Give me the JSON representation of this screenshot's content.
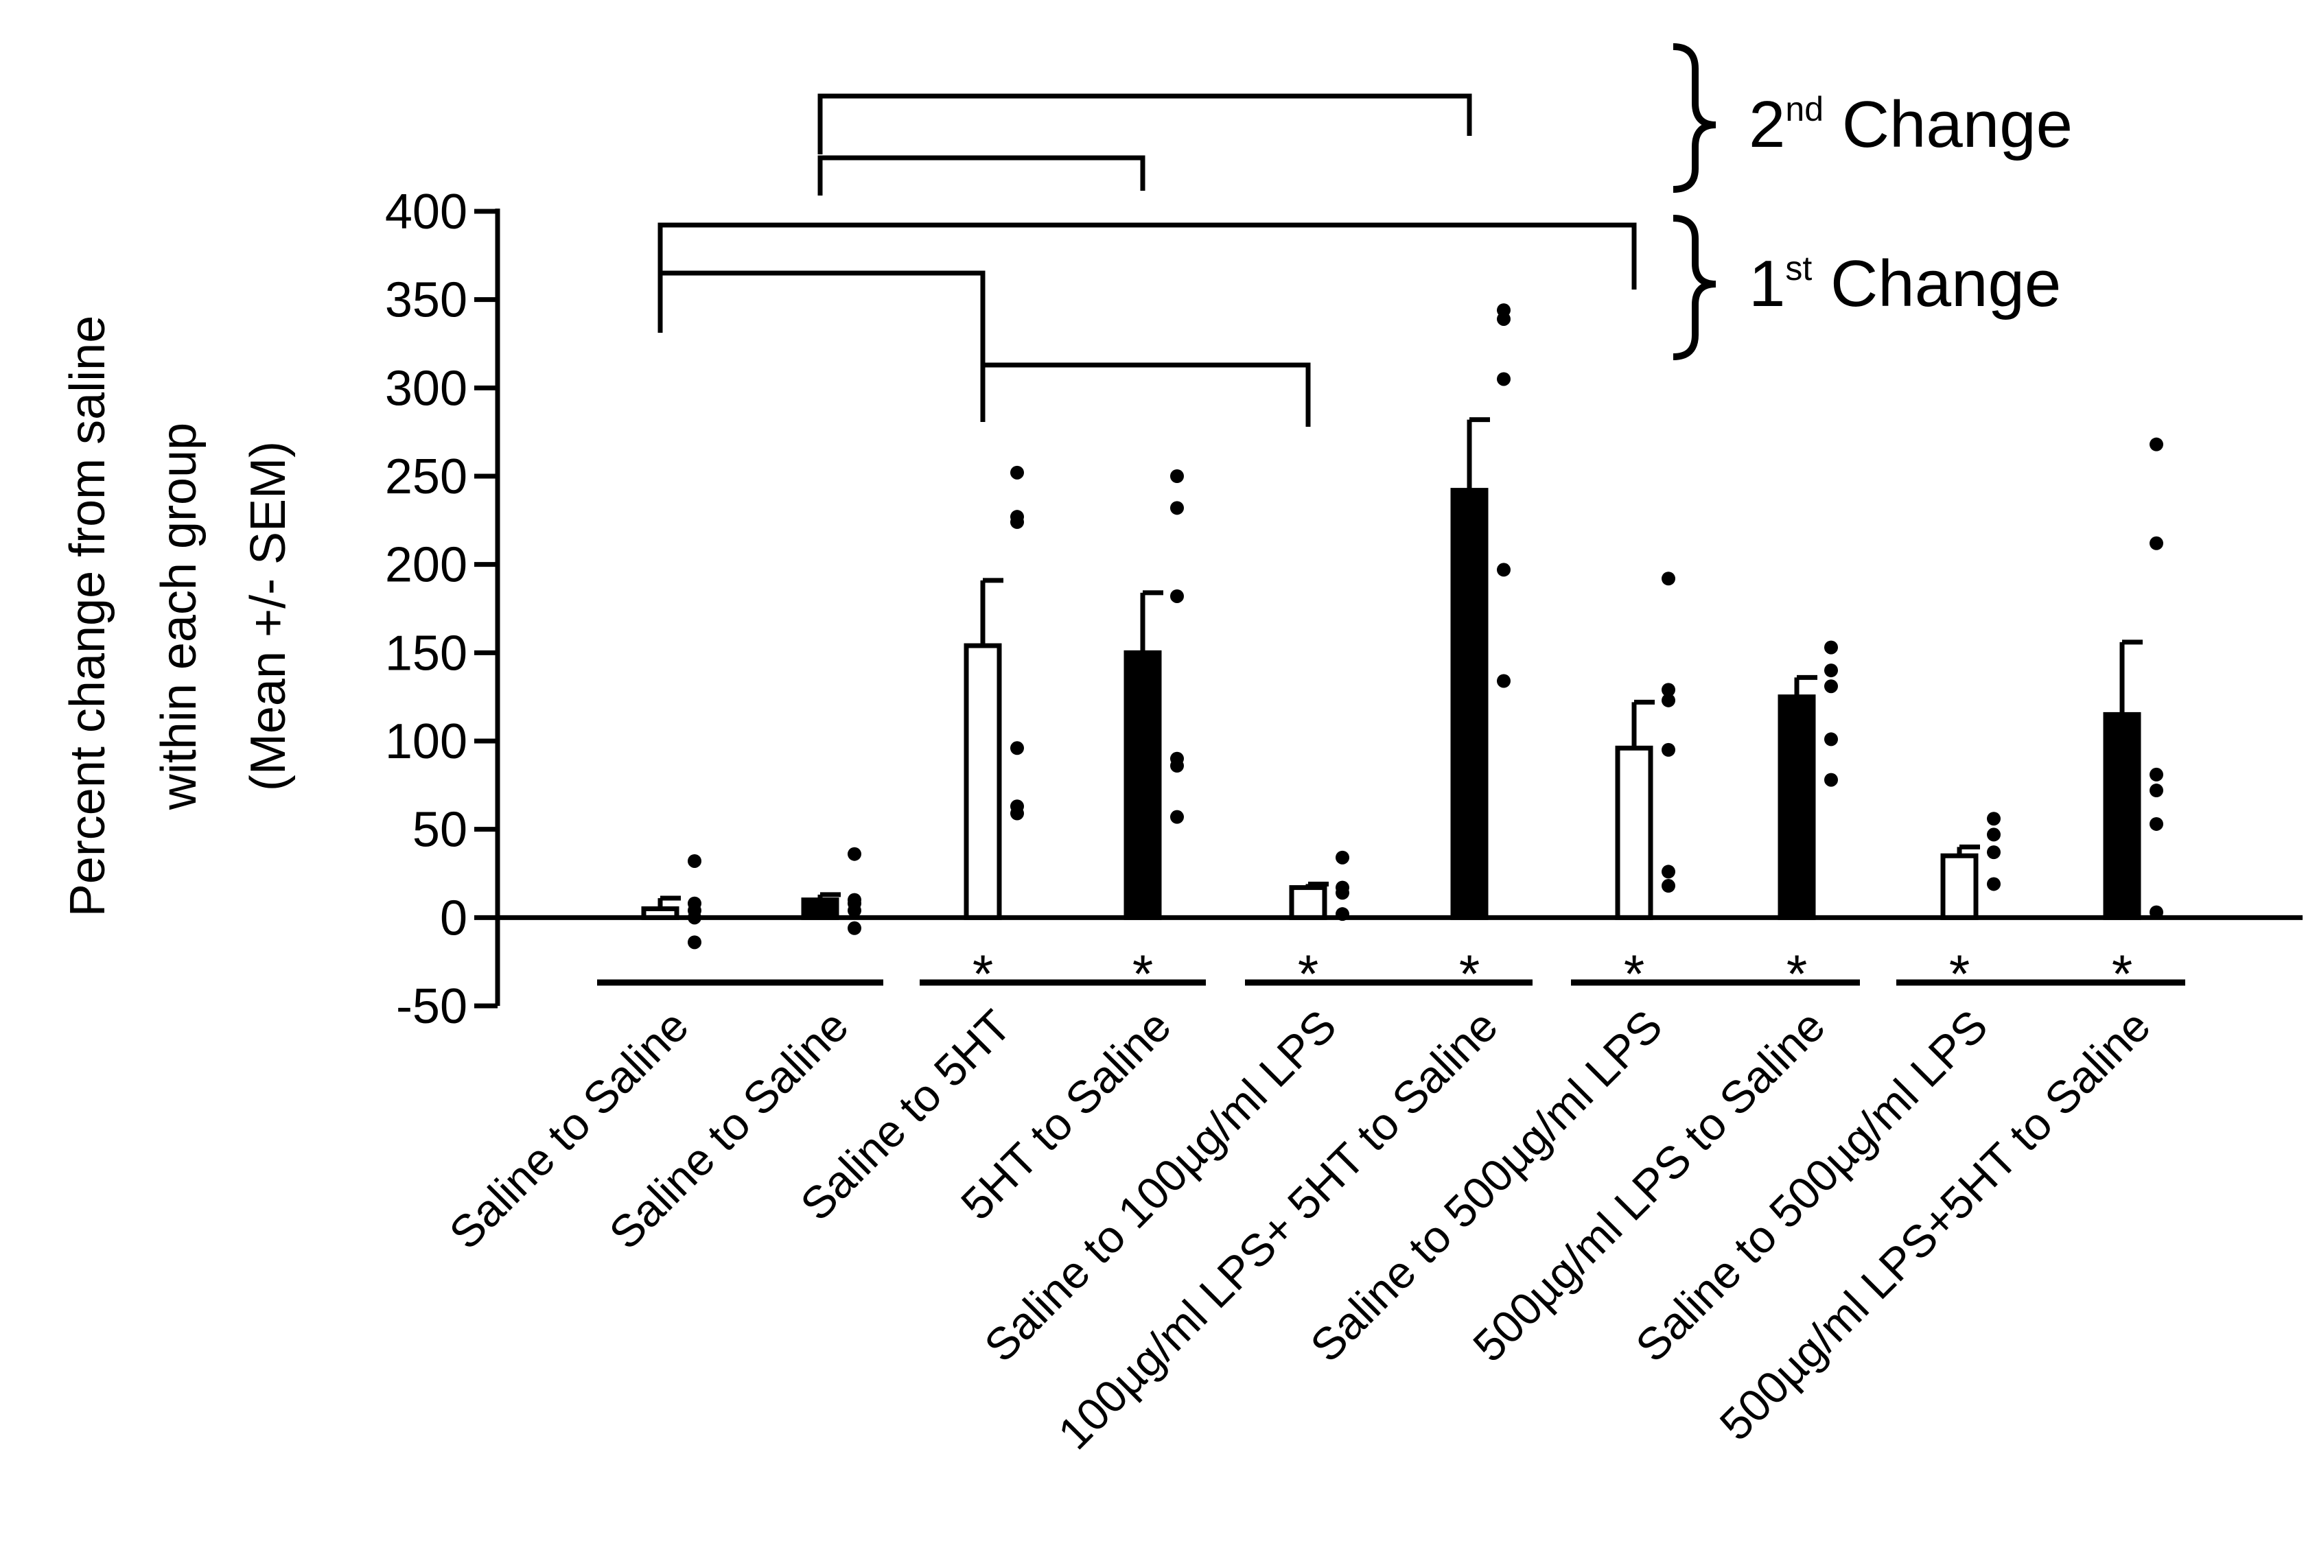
{
  "chart_data": {
    "type": "bar",
    "title": "",
    "xlabel": "",
    "ylabel": [
      "Percent change from saline",
      "within each group",
      "(Mean +/- SEM)"
    ],
    "ylim": [
      -50,
      400
    ],
    "yticks": [
      -50,
      0,
      50,
      100,
      150,
      200,
      250,
      300,
      350,
      400
    ],
    "grid": false,
    "categories": [
      "Saline to Saline",
      "Saline to Saline",
      "Saline to 5HT",
      "5HT to Saline",
      "Saline to 100µg/ml LPS",
      "100µg/ml LPS+ 5HT to Saline",
      "Saline to 500µg/ml  LPS",
      "500µg/ml  LPS to Saline",
      "Saline to 500µg/ml LPS",
      "500µg/ml LPS+5HT to Saline"
    ],
    "bar_fill": [
      "#ffffff",
      "#000000",
      "#ffffff",
      "#000000",
      "#ffffff",
      "#000000",
      "#ffffff",
      "#000000",
      "#ffffff",
      "#000000"
    ],
    "values": [
      5,
      10,
      154,
      150,
      17,
      242,
      96,
      125,
      35,
      115
    ],
    "sem": [
      6,
      3,
      37,
      34,
      2,
      40,
      26,
      11,
      5,
      41
    ],
    "points": [
      [
        32,
        8,
        4,
        0,
        -14
      ],
      [
        36,
        10,
        8,
        4,
        -6
      ],
      [
        252,
        227,
        224,
        96,
        63,
        59
      ],
      [
        250,
        232,
        182,
        90,
        86,
        57
      ],
      [
        34,
        17,
        14,
        2
      ],
      [
        344,
        339,
        305,
        197,
        134
      ],
      [
        192,
        129,
        123,
        95,
        26,
        18
      ],
      [
        153,
        140,
        131,
        101,
        78
      ],
      [
        56,
        47,
        37,
        19
      ],
      [
        268,
        212,
        81,
        72,
        53,
        3
      ]
    ],
    "significance_markers": [
      "",
      "",
      "*",
      "*",
      "*",
      "*",
      "*",
      "*",
      "*",
      "*"
    ],
    "group_pairs": [
      [
        0,
        1
      ],
      [
        2,
        3
      ],
      [
        4,
        5
      ],
      [
        6,
        7
      ],
      [
        8,
        9
      ]
    ],
    "comparisons_1st_change": [
      [
        0,
        2
      ],
      [
        0,
        6
      ],
      [
        2,
        4
      ]
    ],
    "comparisons_2nd_change": [
      [
        1,
        3
      ],
      [
        1,
        5
      ]
    ],
    "annotations": {
      "second_change": {
        "base": "2",
        "sup": "nd",
        "rest": " Change"
      },
      "first_change": {
        "base": "1",
        "sup": "st",
        "rest": " Change"
      }
    }
  }
}
